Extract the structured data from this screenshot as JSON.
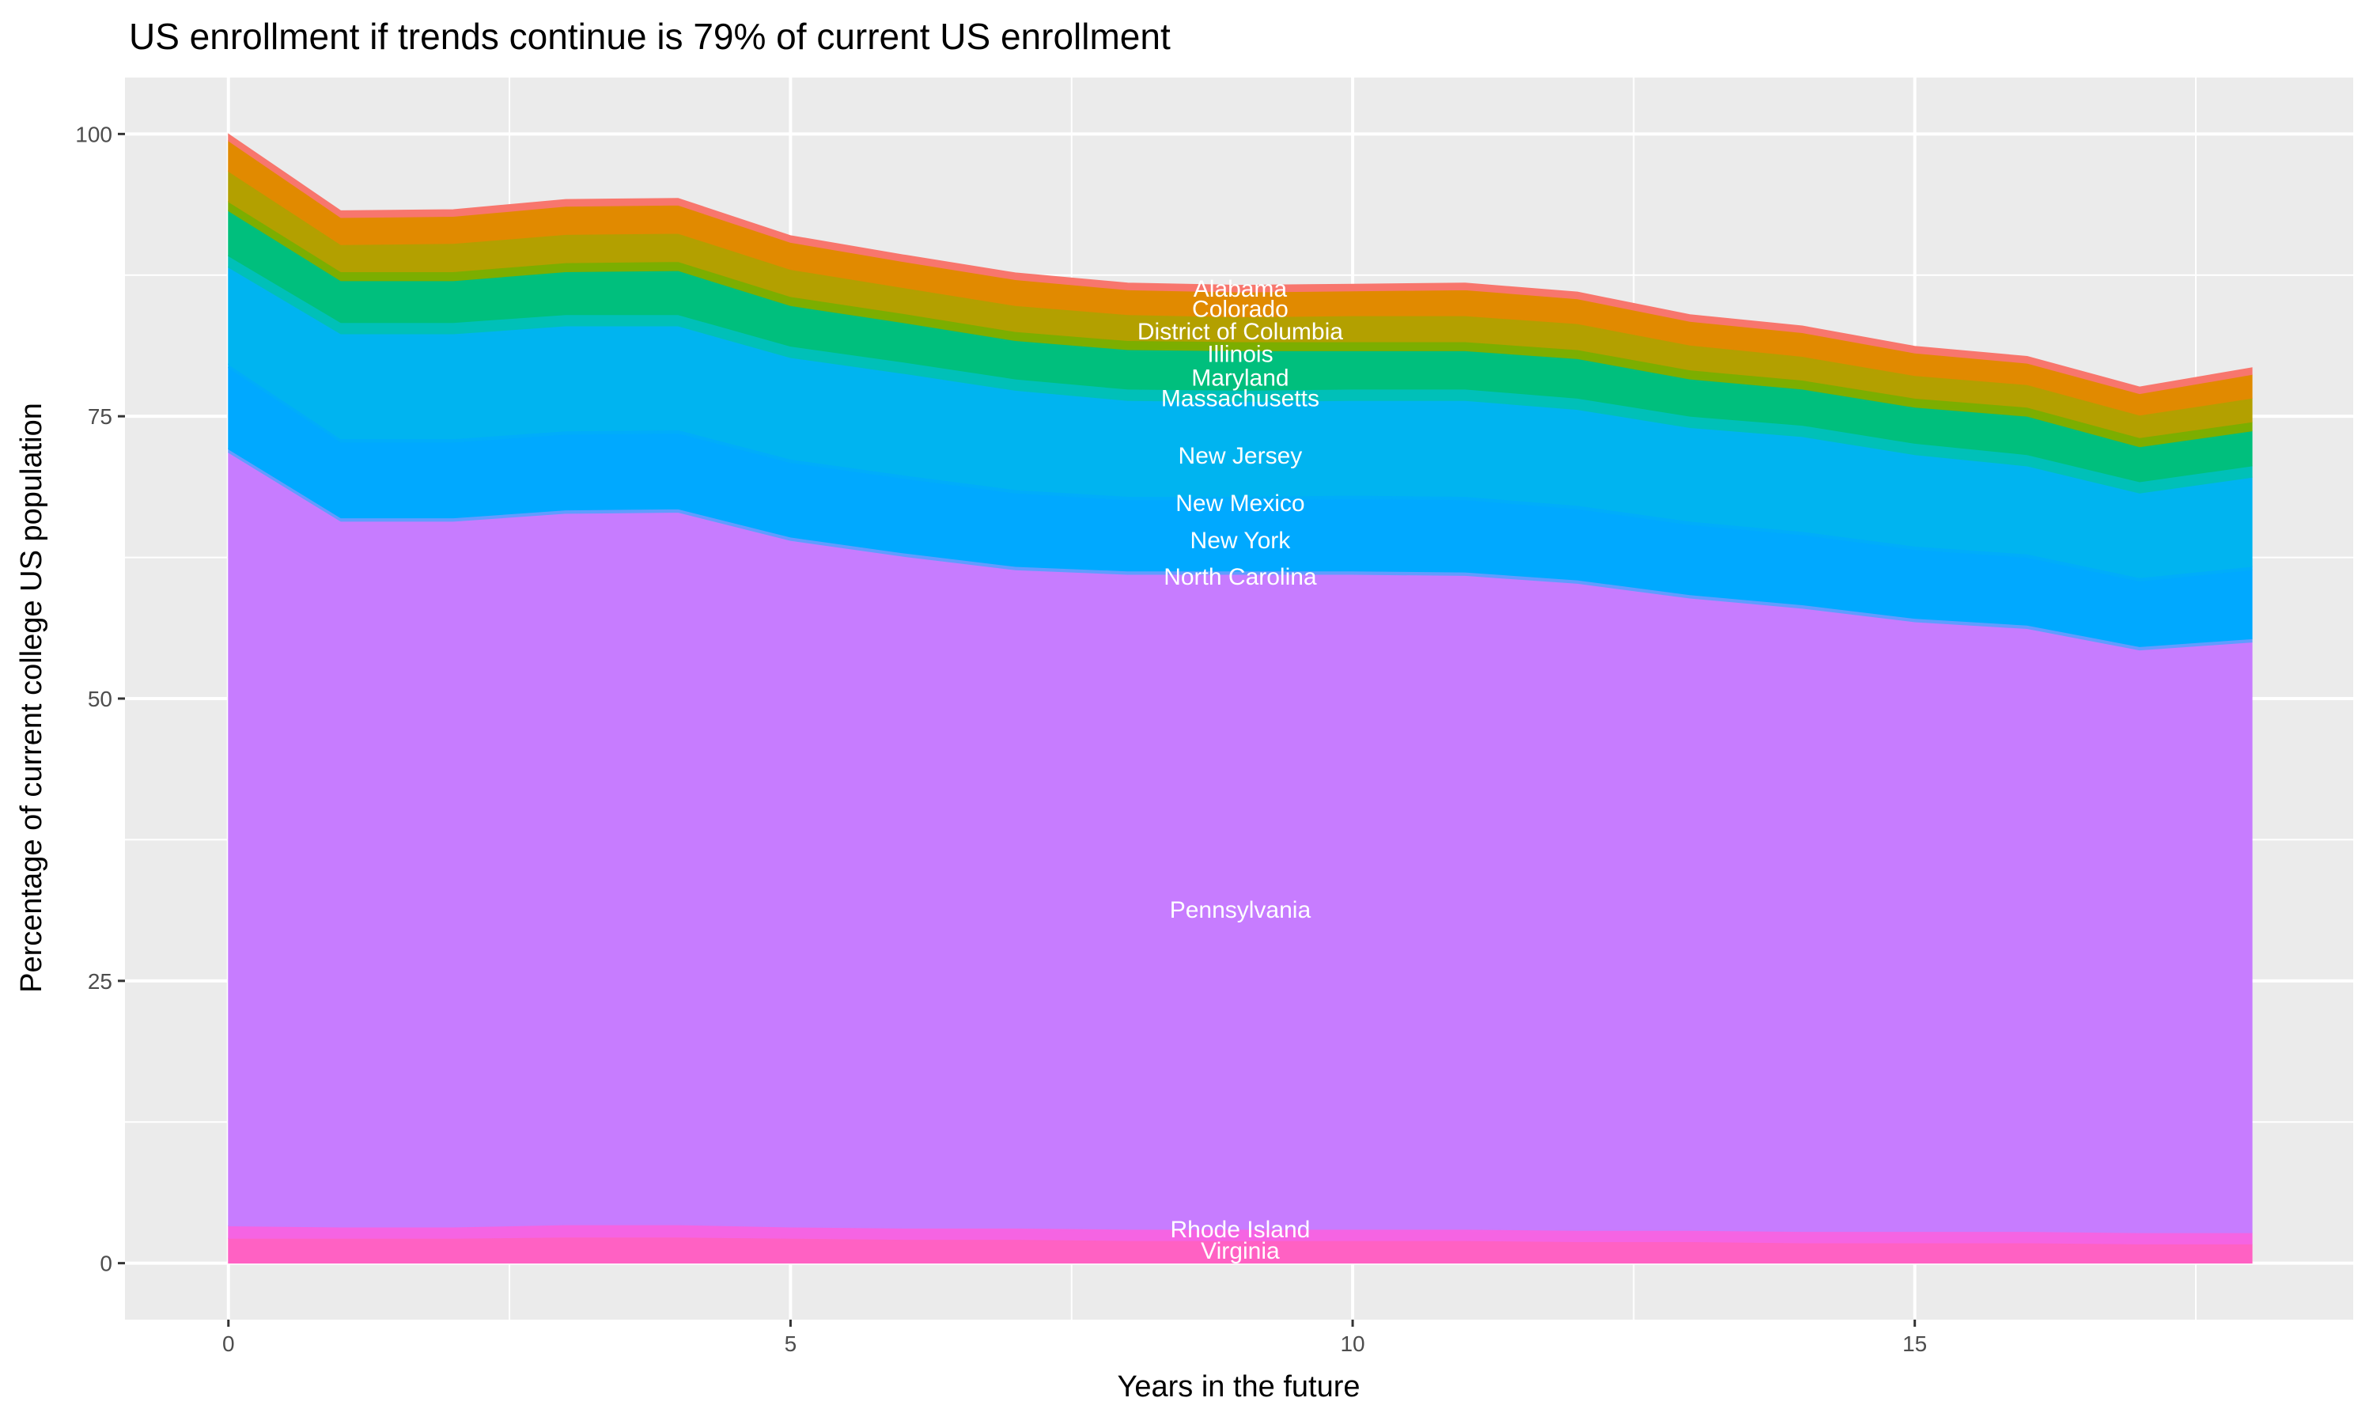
{
  "chart_data": {
    "type": "area",
    "stacked": true,
    "title": "US enrollment if trends continue is 79% of current US enrollment",
    "xlabel": "Years in the future",
    "ylabel": "Percentage of current college US population",
    "xlim": [
      -0.92,
      18.9
    ],
    "ylim": [
      -5,
      105
    ],
    "x_ticks": [
      0,
      5,
      10,
      15
    ],
    "y_ticks": [
      0,
      25,
      50,
      75,
      100
    ],
    "grid": true,
    "legend": "none",
    "label_x": 9,
    "x": [
      0,
      1,
      2,
      3,
      4,
      5,
      6,
      7,
      8,
      9,
      10,
      11,
      12,
      13,
      14,
      15,
      16,
      17,
      18
    ],
    "series": [
      {
        "name": "Virginia",
        "color": "#FF61C3",
        "label_y": 1.1,
        "values": [
          2.2,
          2.2,
          2.2,
          2.3,
          2.3,
          2.2,
          2.1,
          2.1,
          2.0,
          2.0,
          2.0,
          2.0,
          1.9,
          1.9,
          1.8,
          1.8,
          1.8,
          1.7,
          1.7
        ]
      },
      {
        "name": "Rhode Island",
        "color": "#F564E3",
        "label_y": 3.0,
        "values": [
          1.1,
          1.0,
          1.0,
          1.1,
          1.1,
          1.0,
          1.0,
          1.0,
          1.0,
          1.0,
          1.0,
          1.0,
          1.0,
          1.0,
          1.0,
          1.0,
          1.0,
          1.0,
          1.0
        ]
      },
      {
        "name": "Pennsylvania",
        "color": "#C77CFF",
        "label_y": 31.3,
        "values": [
          68.5,
          62.5,
          62.5,
          63.0,
          63.1,
          60.8,
          59.5,
          58.3,
          58.0,
          58.0,
          58.0,
          57.9,
          57.3,
          56.0,
          55.2,
          54.0,
          53.4,
          51.6,
          52.3
        ]
      },
      {
        "name": "North Carolina",
        "color": "#619CFF",
        "label_y": 60.8,
        "values": [
          0.3,
          0.3,
          0.3,
          0.3,
          0.3,
          0.3,
          0.3,
          0.3,
          0.3,
          0.3,
          0.3,
          0.3,
          0.3,
          0.3,
          0.3,
          0.3,
          0.3,
          0.3,
          0.3
        ]
      },
      {
        "name": "New York",
        "color": "#00A9FF",
        "label_y": 64.0,
        "values": [
          7.2,
          6.7,
          6.7,
          6.7,
          6.7,
          6.6,
          6.6,
          6.5,
          6.3,
          6.3,
          6.4,
          6.4,
          6.3,
          6.2,
          6.2,
          6.1,
          6.0,
          5.8,
          6.1
        ]
      },
      {
        "name": "New Mexico",
        "color": "#00ADFA",
        "label_y": 67.3,
        "values": [
          0.3,
          0.3,
          0.3,
          0.3,
          0.3,
          0.3,
          0.3,
          0.3,
          0.3,
          0.3,
          0.3,
          0.3,
          0.3,
          0.3,
          0.3,
          0.3,
          0.3,
          0.3,
          0.3
        ]
      },
      {
        "name": "New Jersey",
        "color": "#00B4F0",
        "label_y": 71.5,
        "values": [
          8.6,
          9.3,
          9.3,
          9.3,
          9.2,
          9.0,
          9.0,
          8.8,
          8.5,
          8.4,
          8.4,
          8.5,
          8.5,
          8.3,
          8.4,
          8.1,
          7.8,
          7.5,
          7.9
        ]
      },
      {
        "name": "Massachusetts",
        "color": "#00C0B8",
        "label_y": 76.6,
        "values": [
          1.0,
          1.0,
          1.0,
          1.0,
          1.0,
          1.0,
          1.0,
          1.0,
          1.0,
          1.0,
          1.0,
          1.0,
          1.0,
          1.0,
          1.0,
          1.0,
          1.0,
          1.0,
          1.0
        ]
      },
      {
        "name": "Maryland",
        "color": "#00BF7D",
        "label_y": 78.4,
        "values": [
          4.0,
          3.7,
          3.7,
          3.8,
          3.9,
          3.6,
          3.5,
          3.4,
          3.5,
          3.5,
          3.4,
          3.4,
          3.5,
          3.3,
          3.2,
          3.2,
          3.4,
          3.1,
          3.1
        ]
      },
      {
        "name": "Illinois",
        "color": "#7CAE00",
        "label_y": 80.5,
        "values": [
          0.8,
          0.8,
          0.8,
          0.8,
          0.8,
          0.8,
          0.8,
          0.8,
          0.8,
          0.8,
          0.8,
          0.8,
          0.8,
          0.8,
          0.8,
          0.8,
          0.8,
          0.8,
          0.8
        ]
      },
      {
        "name": "District of Columbia",
        "color": "#B3A000",
        "label_y": 82.5,
        "values": [
          2.7,
          2.4,
          2.5,
          2.5,
          2.5,
          2.4,
          2.3,
          2.3,
          2.3,
          2.2,
          2.3,
          2.3,
          2.3,
          2.2,
          2.1,
          2.0,
          2.0,
          2.0,
          2.1
        ]
      },
      {
        "name": "Colorado",
        "color": "#E18A00",
        "label_y": 84.5,
        "values": [
          2.7,
          2.4,
          2.4,
          2.5,
          2.5,
          2.4,
          2.3,
          2.3,
          2.2,
          2.2,
          2.2,
          2.3,
          2.2,
          2.1,
          2.1,
          2.0,
          1.9,
          1.9,
          2.1
        ]
      },
      {
        "name": "Alabama",
        "color": "#F8766D",
        "label_y": 86.3,
        "values": [
          0.6,
          0.6,
          0.6,
          0.6,
          0.6,
          0.6,
          0.6,
          0.6,
          0.6,
          0.6,
          0.6,
          0.6,
          0.6,
          0.6,
          0.6,
          0.6,
          0.6,
          0.6,
          0.6
        ]
      }
    ],
    "colors": {
      "panel_bg": "#EBEBEB",
      "grid": "#FFFFFF",
      "label_text": "#FFFFFF",
      "tick_text": "#4D4D4D"
    }
  }
}
